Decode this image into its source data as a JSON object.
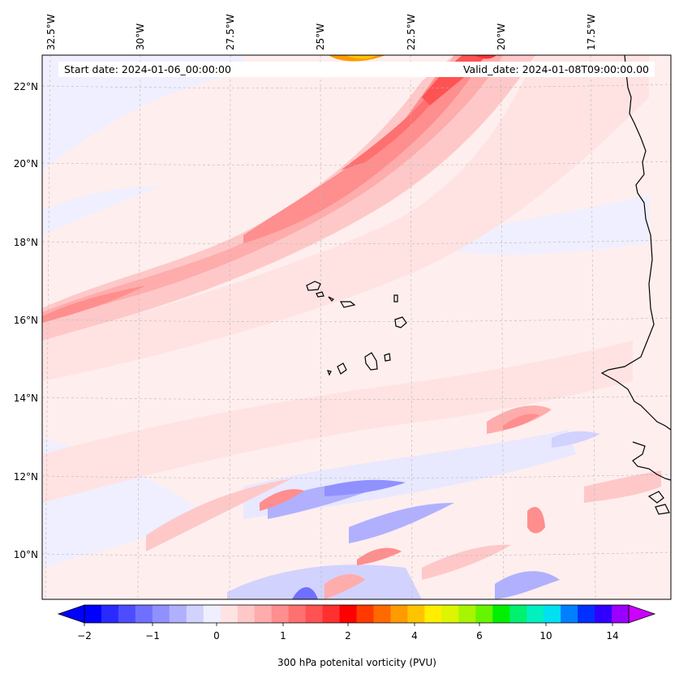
{
  "map": {
    "header": {
      "start_date": "Start date: 2024-01-06_00:00:00",
      "valid_date": "Valid_date: 2024-01-08T09:00:00.00"
    },
    "lon_labels": [
      "32.5°W",
      "30°W",
      "27.5°W",
      "25°W",
      "22.5°W",
      "20°W",
      "17.5°W"
    ],
    "lat_labels": [
      "22°N",
      "20°N",
      "18°N",
      "16°N",
      "14°N",
      "12°N",
      "10°N"
    ],
    "extent": {
      "lon_min": -33.0,
      "lon_max": -15.0,
      "lat_min": 9.0,
      "lat_max": 22.8
    },
    "field_name": "300 hPa potential vorticity"
  },
  "colorbar": {
    "tick_labels": [
      "−2",
      "−1",
      "0",
      "1",
      "2",
      "4",
      "6",
      "10",
      "14"
    ],
    "label": "300 hPa potenital vorticity (PVU)",
    "colors": [
      "#0000ff",
      "#2a2aff",
      "#4d4dff",
      "#7070ff",
      "#9090ff",
      "#b0b0ff",
      "#d2d2ff",
      "#efefff",
      "#ffe3e3",
      "#ffc8c8",
      "#ffacac",
      "#ff8e8e",
      "#ff7070",
      "#ff5252",
      "#ff3030",
      "#ff0000",
      "#ff3a00",
      "#ff6a00",
      "#ff9a00",
      "#ffc400",
      "#ffee00",
      "#ddf500",
      "#a8f500",
      "#66f500",
      "#00f000",
      "#00f070",
      "#00f0c0",
      "#00e0f0",
      "#0080ff",
      "#0030ff",
      "#3000ff",
      "#9900ff"
    ],
    "extend_low_color": "#0000ff",
    "extend_high_color": "#cc00ff"
  }
}
